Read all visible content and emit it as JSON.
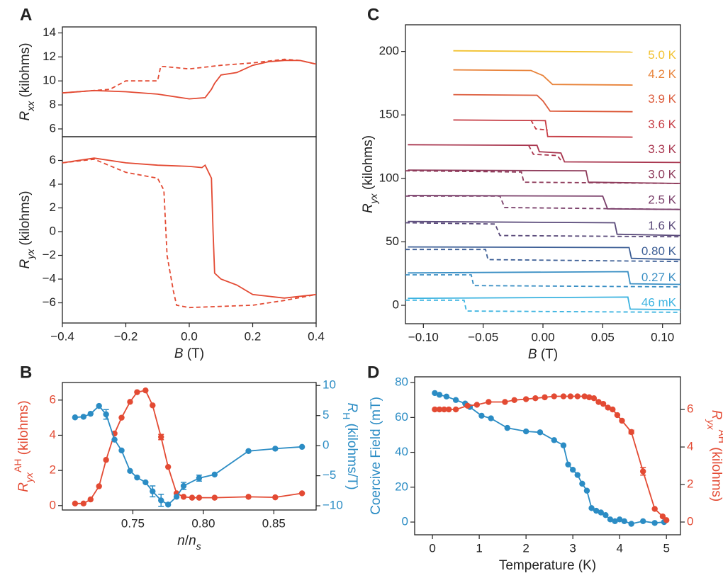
{
  "chart_data": [
    {
      "type": "line",
      "panel": "A",
      "y_label": [
        {
          "text": "R",
          "italic": true
        },
        {
          "text": "xx",
          "italic": true,
          "shift": "sub"
        },
        {
          "text": " (kilohms)"
        }
      ],
      "xlim": [
        -0.4,
        0.4
      ],
      "ylim": [
        5.35,
        14.5
      ],
      "yticks": [
        6,
        8,
        10,
        12,
        14
      ],
      "series": [
        {
          "color": "#e34a33",
          "dash": false,
          "x": [
            -0.4,
            -0.3,
            -0.2,
            -0.1,
            0.0,
            0.05,
            0.07,
            0.08,
            0.1,
            0.15,
            0.2,
            0.25,
            0.3,
            0.35,
            0.4
          ],
          "values": [
            9.0,
            9.2,
            9.1,
            8.9,
            8.5,
            8.6,
            9.3,
            9.8,
            10.5,
            10.7,
            11.3,
            11.6,
            11.7,
            11.7,
            11.4
          ]
        },
        {
          "color": "#e34a33",
          "dash": true,
          "x": [
            -0.4,
            -0.3,
            -0.25,
            -0.2,
            -0.1,
            -0.09,
            -0.08,
            0.0,
            0.1,
            0.2,
            0.3,
            0.35,
            0.4
          ],
          "values": [
            9.0,
            9.2,
            9.3,
            10.0,
            10.0,
            11.2,
            11.2,
            11.0,
            11.3,
            11.5,
            11.8,
            11.7,
            11.4
          ]
        }
      ]
    },
    {
      "type": "line",
      "y_label": [
        {
          "text": "R",
          "italic": true
        },
        {
          "text": "yx",
          "italic": true,
          "shift": "sub"
        },
        {
          "text": " (kilohms)"
        }
      ],
      "x_label": [
        {
          "text": "B",
          "italic": true
        },
        {
          "text": " (T)"
        }
      ],
      "xlim": [
        -0.4,
        0.4
      ],
      "ylim": [
        -7.7,
        8.0
      ],
      "xticks": [
        {
          "value": -0.4,
          "label": "−0.4"
        },
        {
          "value": -0.2,
          "label": "−0.2"
        },
        {
          "value": 0,
          "label": "0.0"
        },
        0.2,
        0.4
      ],
      "yticks": [
        {
          "value": -6,
          "label": "−6"
        },
        {
          "value": -4,
          "label": "−4"
        },
        {
          "value": -2,
          "label": "−2"
        },
        0,
        2,
        4,
        6
      ],
      "series": [
        {
          "color": "#e34a33",
          "dash": false,
          "x": [
            -0.4,
            -0.3,
            -0.2,
            -0.1,
            0.0,
            0.04,
            0.05,
            0.07,
            0.075,
            0.08,
            0.1,
            0.15,
            0.2,
            0.3,
            0.4
          ],
          "values": [
            5.8,
            6.2,
            5.8,
            5.6,
            5.5,
            5.4,
            5.6,
            4.5,
            0.0,
            -3.5,
            -4.0,
            -4.5,
            -5.3,
            -5.6,
            -5.3
          ]
        },
        {
          "color": "#e34a33",
          "dash": true,
          "x": [
            -0.4,
            -0.3,
            -0.2,
            -0.1,
            -0.08,
            -0.07,
            -0.05,
            -0.04,
            0.0,
            0.2,
            0.3,
            0.4
          ],
          "values": [
            5.8,
            6.1,
            5.0,
            4.5,
            3.5,
            -2.0,
            -5.0,
            -6.2,
            -6.4,
            -6.2,
            -5.8,
            -5.3
          ]
        }
      ]
    },
    {
      "type": "line",
      "panel": "B",
      "x_label": [
        {
          "text": "n",
          "italic": true
        },
        {
          "text": "/"
        },
        {
          "text": "n",
          "italic": true
        },
        {
          "text": "s",
          "italic": true,
          "shift": "sub"
        }
      ],
      "y_label": [
        {
          "text": "R",
          "italic": true
        },
        {
          "text": "yx",
          "italic": true,
          "shift": "sub"
        },
        {
          "text": "AH",
          "shift": "super"
        },
        {
          "text": " (kilohms)"
        }
      ],
      "y2_label": [
        {
          "text": "R",
          "italic": true
        },
        {
          "text": "H",
          "shift": "sub"
        },
        {
          "text": " (kilohms/T)"
        }
      ],
      "y_color": "#e34a33",
      "y2_color": "#2b8cc4",
      "marker": true,
      "xlim": [
        0.7,
        0.88
      ],
      "ylim": [
        -0.25,
        7.0
      ],
      "y2lim": [
        -10.7,
        10.5
      ],
      "xticks": [
        0.75,
        {
          "value": 0.8,
          "label": "0.80"
        },
        0.85
      ],
      "yticks": [
        0,
        2,
        4,
        6
      ],
      "y2ticks": [
        {
          "value": -10,
          "label": "−10"
        },
        {
          "value": -5,
          "label": "−5"
        },
        0,
        5,
        10
      ],
      "series": [
        {
          "color": "#e34a33",
          "x": [
            0.709,
            0.715,
            0.72,
            0.726,
            0.731,
            0.737,
            0.742,
            0.748,
            0.753,
            0.759,
            0.764,
            0.77,
            0.775,
            0.781,
            0.786,
            0.792,
            0.797,
            0.808,
            0.832,
            0.851,
            0.87
          ],
          "values": [
            0.12,
            0.12,
            0.35,
            1.1,
            2.6,
            4.1,
            5.0,
            5.9,
            6.45,
            6.55,
            5.7,
            3.9,
            2.2,
            0.7,
            0.5,
            0.45,
            0.45,
            0.45,
            0.5,
            0.47,
            0.7
          ],
          "errors": [
            null,
            null,
            null,
            null,
            null,
            null,
            null,
            null,
            null,
            null,
            null,
            0.15,
            null,
            null,
            null,
            null,
            null,
            null,
            null,
            null,
            null
          ]
        },
        {
          "color": "#2b8cc4",
          "axis": "y2",
          "x": [
            0.709,
            0.715,
            0.72,
            0.726,
            0.731,
            0.737,
            0.742,
            0.748,
            0.753,
            0.759,
            0.764,
            0.77,
            0.775,
            0.781,
            0.786,
            0.797,
            0.808,
            0.832,
            0.851,
            0.87
          ],
          "values": [
            4.7,
            4.8,
            5.3,
            6.6,
            5.2,
            1.0,
            -0.8,
            -4.2,
            -5.3,
            -6.1,
            -7.6,
            -9.1,
            -9.8,
            -8.5,
            -6.7,
            -5.4,
            -4.8,
            -0.9,
            -0.5,
            -0.2
          ],
          "errors": [
            null,
            null,
            null,
            null,
            0.8,
            null,
            null,
            null,
            null,
            null,
            0.9,
            1.0,
            null,
            null,
            0.6,
            0.5,
            null,
            null,
            null,
            null
          ]
        }
      ]
    },
    {
      "type": "line",
      "panel": "C",
      "x_label": [
        {
          "text": "B",
          "italic": true
        },
        {
          "text": " (T)"
        }
      ],
      "y_label": [
        {
          "text": "R",
          "italic": true
        },
        {
          "text": "yx",
          "italic": true,
          "shift": "sub"
        },
        {
          "text": " (kilohms)"
        }
      ],
      "xlim": [
        -0.115,
        0.115
      ],
      "ylim": [
        -14.5,
        221
      ],
      "xticks": [
        {
          "value": -0.1,
          "label": "−0.10"
        },
        {
          "value": -0.05,
          "label": "−0.05"
        },
        {
          "value": 0,
          "label": "0.00"
        },
        0.05,
        {
          "value": 0.1,
          "label": "0.10"
        }
      ],
      "yticks": [
        0,
        50,
        100,
        150,
        200
      ],
      "series": [
        {
          "name": "5.0 K",
          "color": "#f2c230",
          "dash": false,
          "x": [
            -0.075,
            0.075
          ],
          "values": [
            200.5,
            199.5
          ]
        },
        {
          "name": "4.2 K",
          "color": "#e8833a",
          "dash": false,
          "x": [
            -0.075,
            -0.01,
            0.0,
            0.008,
            0.075
          ],
          "values": [
            185.5,
            185,
            181,
            174,
            173.5
          ]
        },
        {
          "name": "3.9 K",
          "color": "#dc5a3a",
          "dash": false,
          "x": [
            -0.075,
            -0.005,
            0.0,
            0.006,
            0.075
          ],
          "values": [
            166,
            165.5,
            161,
            153,
            152.5
          ]
        },
        {
          "name": "3.6 K",
          "color": "#c63c44",
          "dash": false,
          "x": [
            -0.075,
            0.002,
            0.004,
            0.075
          ],
          "values": [
            146,
            145.5,
            133,
            132.5
          ]
        },
        {
          "color": "#c63c44",
          "dash": true,
          "x": [
            -0.01,
            -0.006,
            0.004
          ],
          "values": [
            146,
            139,
            138
          ]
        },
        {
          "name": "3.3 K",
          "color": "#a8354e",
          "dash": false,
          "x": [
            -0.113,
            -0.005,
            -0.003,
            0.015,
            0.018,
            0.115
          ],
          "values": [
            126.5,
            126,
            121,
            120,
            113,
            112.5
          ]
        },
        {
          "color": "#a8354e",
          "dash": true,
          "x": [
            -0.012,
            -0.008,
            0.012,
            0.016
          ],
          "values": [
            126,
            119,
            118,
            113
          ]
        },
        {
          "name": "3.0 K",
          "color": "#8e3a5a",
          "dash": false,
          "x": [
            -0.113,
            0.036,
            0.038,
            0.115
          ],
          "values": [
            106.5,
            106,
            97,
            96
          ]
        },
        {
          "color": "#8e3a5a",
          "dash": true,
          "x": [
            -0.115,
            -0.018,
            -0.016,
            0.115
          ],
          "values": [
            106,
            105,
            97,
            96
          ]
        },
        {
          "name": "2.5 K",
          "color": "#7a3f6a",
          "dash": false,
          "x": [
            -0.113,
            0.05,
            0.054,
            0.115
          ],
          "values": [
            86.5,
            86,
            76,
            75.5
          ]
        },
        {
          "color": "#7a3f6a",
          "dash": true,
          "x": [
            -0.115,
            -0.036,
            -0.032,
            0.115
          ],
          "values": [
            86,
            86,
            77,
            75.5
          ]
        },
        {
          "name": "1.6 K",
          "color": "#5a4a7a",
          "dash": false,
          "x": [
            -0.113,
            0.06,
            0.062,
            0.115
          ],
          "values": [
            66,
            65,
            56,
            55
          ]
        },
        {
          "color": "#5a4a7a",
          "dash": true,
          "x": [
            -0.115,
            -0.04,
            -0.036,
            0.115
          ],
          "values": [
            65,
            64,
            55,
            54
          ]
        },
        {
          "name": "0.80 K",
          "color": "#3d5f96",
          "dash": false,
          "x": [
            -0.113,
            0.072,
            0.074,
            0.115
          ],
          "values": [
            46,
            45.5,
            37,
            36
          ]
        },
        {
          "color": "#3d5f96",
          "dash": true,
          "x": [
            -0.115,
            -0.048,
            -0.046,
            0.115
          ],
          "values": [
            44,
            44,
            36,
            34.5
          ]
        },
        {
          "name": "0.27 K",
          "color": "#3a8fc4",
          "dash": false,
          "x": [
            -0.113,
            0.071,
            0.073,
            0.115
          ],
          "values": [
            25.5,
            26.5,
            17,
            16.5
          ]
        },
        {
          "color": "#3a8fc4",
          "dash": true,
          "x": [
            -0.115,
            -0.06,
            -0.058,
            0.115
          ],
          "values": [
            24,
            24,
            15.5,
            14.5
          ]
        },
        {
          "name": "46 mK",
          "color": "#3bb3e0",
          "dash": false,
          "x": [
            -0.113,
            0.071,
            0.073,
            0.115
          ],
          "values": [
            5.5,
            6.5,
            -3.0,
            -3.5
          ]
        },
        {
          "color": "#3bb3e0",
          "dash": true,
          "x": [
            -0.115,
            -0.066,
            -0.064,
            0.115
          ],
          "values": [
            4,
            4,
            -4.5,
            -5.5
          ]
        }
      ]
    },
    {
      "type": "line",
      "panel": "D",
      "x_label": "Temperature (K)",
      "y_label": "Coercive Field (mT)",
      "y2_label": [
        {
          "text": "R",
          "italic": true
        },
        {
          "text": "yx",
          "italic": true,
          "shift": "sub"
        },
        {
          "text": "AH",
          "shift": "super"
        },
        {
          "text": " (kilohms)"
        }
      ],
      "y_color": "#2b8cc4",
      "y2_color": "#e34a33",
      "marker": true,
      "xlim": [
        -0.38,
        5.3
      ],
      "ylim": [
        -7.3,
        83.3
      ],
      "y2lim": [
        -0.68,
        7.74
      ],
      "xticks": [
        0,
        1,
        2,
        3,
        4,
        5
      ],
      "yticks": [
        0,
        20,
        40,
        60,
        80
      ],
      "y2ticks": [
        0,
        2,
        4,
        6
      ],
      "series": [
        {
          "color": "#2b8cc4",
          "x": [
            0.05,
            0.15,
            0.3,
            0.5,
            0.7,
            0.8,
            1.05,
            1.25,
            1.6,
            2.0,
            2.3,
            2.6,
            2.8,
            2.9,
            3.0,
            3.1,
            3.2,
            3.3,
            3.4,
            3.5,
            3.6,
            3.7,
            3.8,
            3.9,
            4.0,
            4.1,
            4.25,
            4.5,
            4.75,
            4.95
          ],
          "values": [
            74,
            73,
            72,
            70,
            68,
            66,
            61,
            59.5,
            54,
            52,
            51.5,
            47,
            44,
            33,
            30,
            27,
            22,
            18,
            8,
            6.5,
            5.5,
            4,
            1.5,
            0.5,
            1.5,
            0.5,
            -1,
            0.5,
            -0.5,
            0
          ]
        },
        {
          "color": "#e34a33",
          "axis": "y2",
          "x": [
            0.05,
            0.15,
            0.25,
            0.35,
            0.5,
            0.75,
            0.95,
            1.2,
            1.55,
            1.75,
            2.0,
            2.2,
            2.4,
            2.6,
            2.8,
            2.95,
            3.1,
            3.25,
            3.35,
            3.45,
            3.55,
            3.65,
            3.75,
            3.85,
            3.95,
            4.05,
            4.25,
            4.5,
            4.75,
            4.92,
            5.0
          ],
          "values": [
            6.0,
            6.0,
            6.0,
            6.0,
            6.0,
            6.2,
            6.25,
            6.4,
            6.4,
            6.5,
            6.55,
            6.6,
            6.65,
            6.7,
            6.7,
            6.7,
            6.7,
            6.7,
            6.65,
            6.6,
            6.4,
            6.3,
            6.1,
            6.0,
            5.7,
            5.4,
            4.8,
            2.7,
            0.7,
            0.3,
            0.1
          ],
          "errors": [
            null,
            null,
            null,
            null,
            null,
            null,
            null,
            null,
            null,
            null,
            null,
            null,
            null,
            null,
            null,
            null,
            null,
            null,
            null,
            null,
            null,
            null,
            null,
            null,
            null,
            null,
            0.1,
            0.2,
            null,
            null,
            null
          ]
        }
      ]
    }
  ]
}
